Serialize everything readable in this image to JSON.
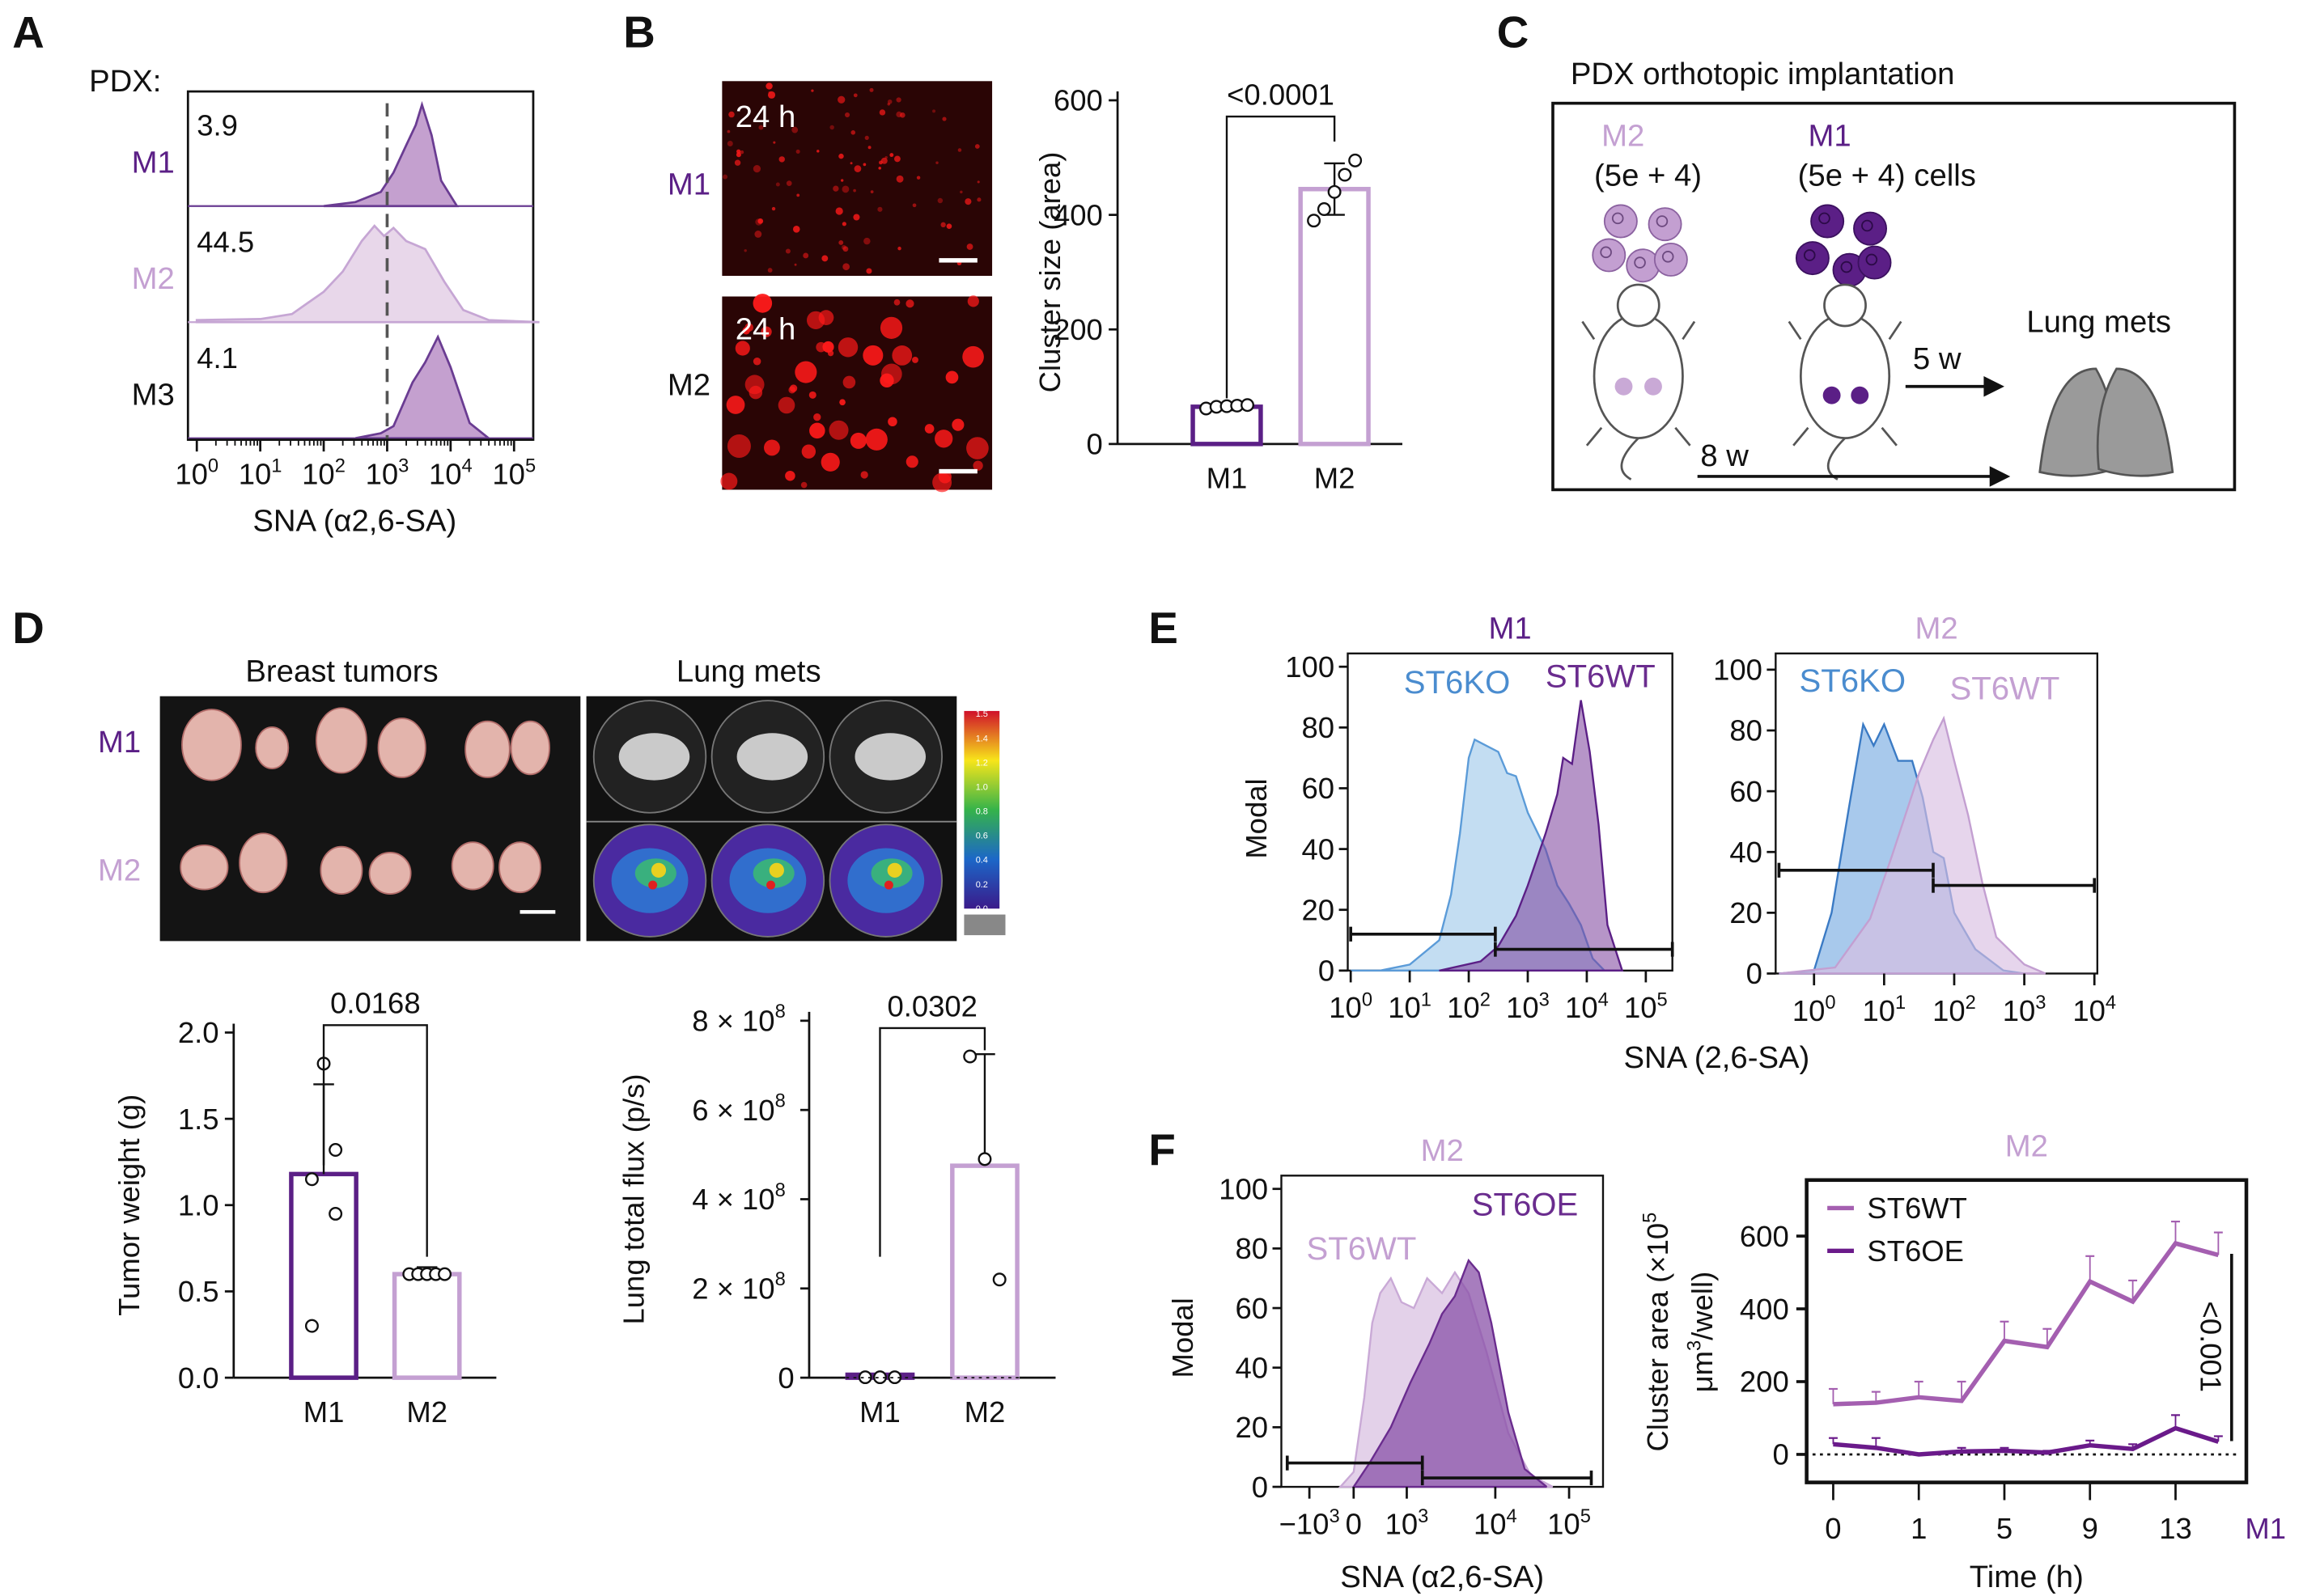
{
  "colors": {
    "m1": "#5b1f86",
    "m2": "#c4a0d2",
    "m3": "#111111",
    "st6ko": "#4a8ccf",
    "st6ko_fill": "#b9d7f0",
    "st6wt_m1": "#6a2c8e",
    "st6oe": "#6a2c8e",
    "micro_bg": "#2a0505",
    "micro_dot": "#ff1a1a"
  },
  "panels": {
    "A": {
      "letter": "A",
      "prefix": "PDX:"
    },
    "B": {
      "letter": "B",
      "image_label": "24 h"
    },
    "C": {
      "letter": "C",
      "title": "PDX orthotopic implantation",
      "m2_label": "M2",
      "m2_cells": "(5e + 4)",
      "m1_label": "M1",
      "m1_cells": "(5e + 4) cells",
      "arrow_short": "5 w",
      "arrow_long": "8 w",
      "outcome": "Lung mets"
    },
    "D": {
      "letter": "D",
      "photo_title_left": "Breast tumors",
      "photo_title_right": "Lung mets",
      "row_m1": "M1",
      "row_m2": "M2",
      "colorbar_ticks": [
        "1.5",
        "1.4",
        "1.2",
        "1.0",
        "0.8",
        "0.6",
        "0.4",
        "0.2",
        "0.0"
      ]
    },
    "E": {
      "letter": "E",
      "xlabel": "SNA (2,6-SA)"
    },
    "F": {
      "letter": "F"
    }
  },
  "chart_data": [
    {
      "id": "A",
      "type": "histogram",
      "xlabel": "SNA (α2,6-SA)",
      "xscale": "log",
      "xlim": [
        0,
        5.4
      ],
      "x_tick_labels": [
        "10^0",
        "10^1",
        "10^2",
        "10^3",
        "10^4",
        "10^5"
      ],
      "threshold_log10": 3,
      "series": [
        {
          "name": "M1",
          "annotation": "3.9",
          "curve": [
            [
              2,
              0
            ],
            [
              2.5,
              0.04
            ],
            [
              2.9,
              0.14
            ],
            [
              3.1,
              0.33
            ],
            [
              3.3,
              0.6
            ],
            [
              3.45,
              0.8
            ],
            [
              3.55,
              1
            ],
            [
              3.7,
              0.7
            ],
            [
              3.85,
              0.25
            ],
            [
              4.1,
              0
            ]
          ]
        },
        {
          "name": "M2",
          "annotation": "44.5",
          "curve": [
            [
              0,
              0.02
            ],
            [
              1,
              0.03
            ],
            [
              1.5,
              0.08
            ],
            [
              2,
              0.3
            ],
            [
              2.3,
              0.5
            ],
            [
              2.6,
              0.8
            ],
            [
              2.8,
              0.95
            ],
            [
              2.95,
              0.85
            ],
            [
              3.1,
              0.93
            ],
            [
              3.3,
              0.8
            ],
            [
              3.6,
              0.72
            ],
            [
              3.9,
              0.4
            ],
            [
              4.2,
              0.12
            ],
            [
              4.6,
              0.02
            ],
            [
              5.4,
              0
            ]
          ]
        },
        {
          "name": "M3",
          "annotation": "4.1",
          "curve": [
            [
              2.5,
              0
            ],
            [
              2.9,
              0.05
            ],
            [
              3.1,
              0.12
            ],
            [
              3.4,
              0.55
            ],
            [
              3.6,
              0.75
            ],
            [
              3.8,
              1
            ],
            [
              4.0,
              0.7
            ],
            [
              4.3,
              0.15
            ],
            [
              4.6,
              0
            ]
          ]
        }
      ]
    },
    {
      "id": "B",
      "type": "bar",
      "ylabel": "Cluster size (area)",
      "ylim": [
        0,
        600
      ],
      "y_ticks": [
        0,
        200,
        400,
        600
      ],
      "categories": [
        "M1",
        "M2"
      ],
      "values": [
        65,
        445
      ],
      "errors": [
        6,
        45
      ],
      "points": [
        [
          62,
          65,
          66,
          67,
          68
        ],
        [
          390,
          410,
          440,
          470,
          495
        ]
      ],
      "pvalue": "<0.0001"
    },
    {
      "id": "D1",
      "type": "bar",
      "ylabel": "Tumor weight (g)",
      "ylim": [
        0,
        2.0
      ],
      "y_ticks": [
        "0.0",
        "0.5",
        "1.0",
        "1.5",
        "2.0"
      ],
      "categories": [
        "M1",
        "M2"
      ],
      "values": [
        1.18,
        0.6
      ],
      "errors": [
        0.52,
        0.04
      ],
      "points": [
        [
          1.82,
          1.32,
          1.15,
          0.95,
          0.3
        ],
        [
          0.6,
          0.6,
          0.6,
          0.6,
          0.6
        ]
      ],
      "pvalue": "0.0168"
    },
    {
      "id": "D2",
      "type": "bar",
      "ylabel": "Lung total flux (p/s)",
      "ylim": [
        0,
        800000000.0
      ],
      "y_ticks": [
        "0",
        "2 × 10^8",
        "4 × 10^8",
        "6 × 10^8",
        "8 × 10^8"
      ],
      "categories": [
        "M1",
        "M2"
      ],
      "values": [
        1000000.0,
        475000000.0
      ],
      "errors": [
        0,
        250000000.0
      ],
      "points": [
        [
          1000000.0,
          1000000.0,
          1000000.0
        ],
        [
          720000000.0,
          490000000.0,
          220000000.0
        ]
      ],
      "pvalue": "0.0302"
    },
    {
      "id": "E1",
      "type": "histogram",
      "title": "M1",
      "ylabel": "Modal",
      "ylim": [
        0,
        100
      ],
      "y_ticks": [
        0,
        20,
        40,
        60,
        80,
        100
      ],
      "xscale": "log",
      "xlim": [
        0,
        5.45
      ],
      "x_tick_labels": [
        "10^0",
        "10^1",
        "10^2",
        "10^3",
        "10^4",
        "10^5"
      ],
      "series": [
        {
          "name": "ST6KO",
          "curve": [
            [
              0,
              0
            ],
            [
              0.5,
              0
            ],
            [
              1,
              2
            ],
            [
              1.5,
              10
            ],
            [
              1.7,
              25
            ],
            [
              1.85,
              45
            ],
            [
              2.0,
              70
            ],
            [
              2.1,
              76
            ],
            [
              2.3,
              74
            ],
            [
              2.5,
              72
            ],
            [
              2.65,
              65
            ],
            [
              2.8,
              64
            ],
            [
              3.0,
              52
            ],
            [
              3.3,
              40
            ],
            [
              3.5,
              28
            ],
            [
              3.7,
              22
            ],
            [
              3.9,
              15
            ],
            [
              4.1,
              4
            ],
            [
              4.3,
              0
            ]
          ]
        },
        {
          "name": "ST6WT",
          "curve": [
            [
              1.5,
              0
            ],
            [
              2.2,
              3
            ],
            [
              2.5,
              8
            ],
            [
              2.8,
              18
            ],
            [
              3.0,
              28
            ],
            [
              3.3,
              45
            ],
            [
              3.5,
              58
            ],
            [
              3.6,
              70
            ],
            [
              3.75,
              68
            ],
            [
              3.9,
              89
            ],
            [
              4.05,
              72
            ],
            [
              4.2,
              48
            ],
            [
              4.35,
              15
            ],
            [
              4.6,
              0
            ]
          ]
        }
      ],
      "gates": [
        {
          "from": 0,
          "to": 2.45,
          "level": 12
        },
        {
          "from": 2.45,
          "to": 5.45,
          "level": 7
        }
      ]
    },
    {
      "id": "E2",
      "type": "histogram",
      "title": "M2",
      "ylabel": "",
      "ylim": [
        0,
        100
      ],
      "y_ticks": [
        0,
        20,
        40,
        60,
        80,
        100
      ],
      "xscale": "log",
      "xlim": [
        -0.5,
        4
      ],
      "x_tick_labels": [
        "10^0",
        "10^1",
        "10^2",
        "10^3",
        "10^4"
      ],
      "series": [
        {
          "name": "ST6KO",
          "curve": [
            [
              -0.5,
              0
            ],
            [
              0,
              1
            ],
            [
              0.25,
              20
            ],
            [
              0.5,
              55
            ],
            [
              0.7,
              82
            ],
            [
              0.85,
              75
            ],
            [
              1.0,
              82
            ],
            [
              1.2,
              70
            ],
            [
              1.4,
              70
            ],
            [
              1.55,
              58
            ],
            [
              1.7,
              40
            ],
            [
              1.85,
              38
            ],
            [
              2.0,
              20
            ],
            [
              2.3,
              8
            ],
            [
              2.7,
              1
            ],
            [
              3,
              0
            ]
          ]
        },
        {
          "name": "ST6WT",
          "curve": [
            [
              -0.5,
              0
            ],
            [
              0.3,
              2
            ],
            [
              0.8,
              18
            ],
            [
              1.1,
              38
            ],
            [
              1.3,
              52
            ],
            [
              1.5,
              66
            ],
            [
              1.7,
              77
            ],
            [
              1.85,
              84
            ],
            [
              2.0,
              70
            ],
            [
              2.2,
              52
            ],
            [
              2.4,
              30
            ],
            [
              2.6,
              12
            ],
            [
              3.0,
              3
            ],
            [
              3.3,
              0
            ]
          ]
        }
      ],
      "gates": [
        {
          "from": -0.5,
          "to": 1.7,
          "level": 34
        },
        {
          "from": 1.7,
          "to": 4,
          "level": 29
        }
      ]
    },
    {
      "id": "F1",
      "type": "histogram",
      "title": "M2",
      "xlabel": "SNA (α2,6-SA)",
      "ylabel": "Modal",
      "ylim": [
        0,
        100
      ],
      "y_ticks": [
        0,
        20,
        40,
        60,
        80,
        100
      ],
      "xscale": "biexponential",
      "x_ticks": [
        -1000,
        0,
        1000,
        10000,
        100000
      ],
      "x_tick_labels": [
        "−10^3",
        "0",
        "10^3",
        "10^4",
        "10^5"
      ],
      "series": [
        {
          "name": "ST6WT",
          "curve": [
            [
              -300,
              0
            ],
            [
              0,
              5
            ],
            [
              200,
              30
            ],
            [
              350,
              55
            ],
            [
              500,
              65
            ],
            [
              700,
              70
            ],
            [
              900,
              62
            ],
            [
              1200,
              60
            ],
            [
              1700,
              70
            ],
            [
              2500,
              65
            ],
            [
              3500,
              72
            ],
            [
              5000,
              65
            ],
            [
              8000,
              45
            ],
            [
              15000,
              18
            ],
            [
              30000,
              4
            ],
            [
              60000,
              0
            ]
          ]
        },
        {
          "name": "ST6OE",
          "curve": [
            [
              0,
              0
            ],
            [
              300,
              8
            ],
            [
              700,
              20
            ],
            [
              1100,
              35
            ],
            [
              1800,
              48
            ],
            [
              2500,
              58
            ],
            [
              3500,
              64
            ],
            [
              5000,
              76
            ],
            [
              6500,
              72
            ],
            [
              9000,
              55
            ],
            [
              15000,
              25
            ],
            [
              25000,
              6
            ],
            [
              50000,
              0
            ]
          ]
        }
      ],
      "gates": [
        {
          "from": -1500,
          "to": 1500,
          "level": 8
        },
        {
          "from": 1500,
          "to": 200000,
          "level": 3
        }
      ]
    },
    {
      "id": "F2",
      "type": "line",
      "title": "M2",
      "xlabel": "Time (h)",
      "ylabel": "Cluster area (×10^5 μm^3/well)",
      "ylim": [
        -100,
        700
      ],
      "y_ticks": [
        0,
        200,
        400,
        600
      ],
      "x_tick_labels": [
        "0",
        "1",
        "5",
        "9",
        "13"
      ],
      "extra_label": "M1",
      "pvalue": "<0.001",
      "series": [
        {
          "name": "ST6WT",
          "values": [
            138,
            142,
            157,
            147,
            312,
            295,
            475,
            420,
            580,
            548
          ],
          "upper": [
            180,
            172,
            200,
            200,
            365,
            345,
            545,
            478,
            640,
            610
          ]
        },
        {
          "name": "ST6OE",
          "values": [
            28,
            18,
            0,
            8,
            10,
            5,
            25,
            15,
            72,
            35
          ],
          "upper": [
            45,
            45,
            0,
            18,
            18,
            10,
            38,
            28,
            108,
            50
          ]
        }
      ]
    }
  ]
}
